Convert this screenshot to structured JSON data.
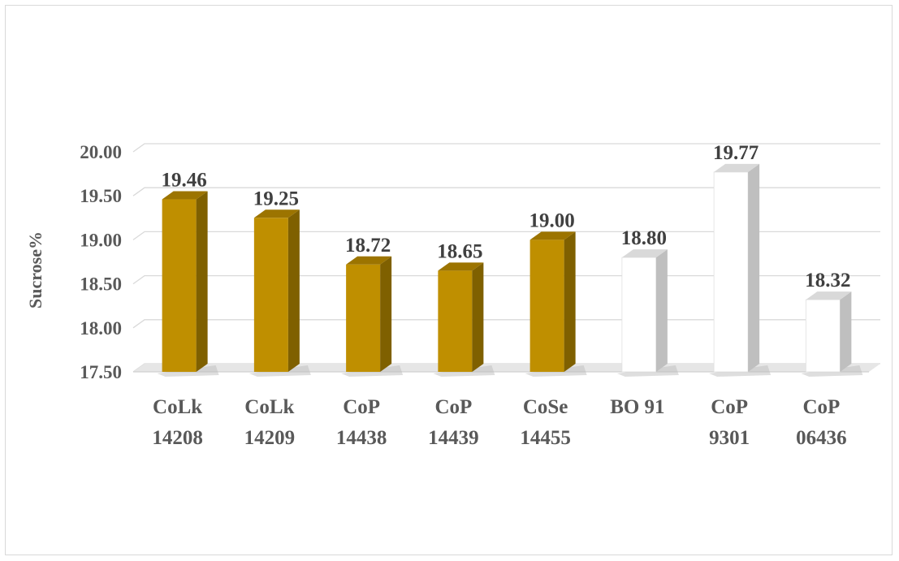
{
  "chart_data": {
    "type": "bar",
    "title": "",
    "xlabel": "",
    "ylabel": "Sucrose%",
    "ylim": [
      17.5,
      20.0
    ],
    "yticks": [
      "17.50",
      "18.00",
      "18.50",
      "19.00",
      "19.50",
      "20.00"
    ],
    "grid": true,
    "legend": "none",
    "categories": [
      [
        "CoLk",
        "14208"
      ],
      [
        "CoLk",
        "14209"
      ],
      [
        "CoP",
        "14438"
      ],
      [
        "CoP",
        "14439"
      ],
      [
        "CoSe",
        "14455"
      ],
      [
        "BO 91"
      ],
      [
        "CoP",
        "9301"
      ],
      [
        "CoP",
        "06436"
      ]
    ],
    "values": [
      19.46,
      19.25,
      18.72,
      18.65,
      19.0,
      18.8,
      19.77,
      18.32
    ],
    "value_labels": [
      "19.46",
      "19.25",
      "18.72",
      "18.65",
      "19.00",
      "18.80",
      "19.77",
      "18.32"
    ],
    "bar_styles": [
      "gold",
      "gold",
      "gold",
      "gold",
      "gold",
      "white",
      "white",
      "white"
    ],
    "colors": {
      "gold_front": "#bf8f00",
      "gold_side": "#7f6000",
      "gold_top": "#9c7400",
      "white_front": "#ffffff",
      "white_side": "#bfbfbf",
      "white_top": "#d9d9d9",
      "grid": "#d9d9d9"
    }
  }
}
